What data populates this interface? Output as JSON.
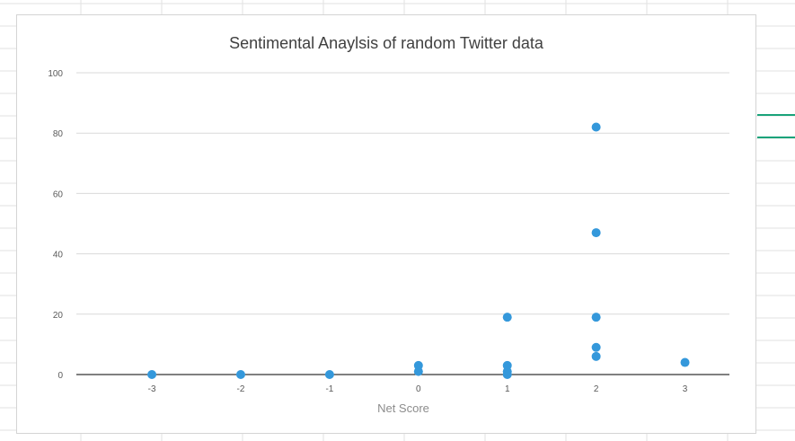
{
  "colors": {
    "sheet_gridline": "#e2e2e2",
    "chart_gridline": "#d9d9d9",
    "axis_line": "#000000",
    "marker": "#3498db",
    "side_line": "#1aa37a"
  },
  "chart_data": {
    "type": "scatter",
    "title": "Sentimental Anaylsis of random Twitter data",
    "xlabel": "Net Score",
    "ylabel": "",
    "xlim": [
      -3.85,
      3.5
    ],
    "ylim": [
      0,
      100
    ],
    "xticks": [
      "-3",
      "-2",
      "-1",
      "0",
      "1",
      "2",
      "3"
    ],
    "xtick_values": [
      -3,
      -2,
      -1,
      0,
      1,
      2,
      3
    ],
    "yticks": [
      "0",
      "20",
      "40",
      "60",
      "80",
      "100"
    ],
    "ytick_values": [
      0,
      20,
      40,
      60,
      80,
      100
    ],
    "grid": true,
    "legend": "none",
    "series": [
      {
        "points": [
          {
            "x": -3,
            "y": 0
          },
          {
            "x": -2,
            "y": 0
          },
          {
            "x": -1,
            "y": 0
          },
          {
            "x": 0,
            "y": 3
          },
          {
            "x": 0,
            "y": 1
          },
          {
            "x": 1,
            "y": 19
          },
          {
            "x": 1,
            "y": 3
          },
          {
            "x": 1,
            "y": 1
          },
          {
            "x": 1,
            "y": 0
          },
          {
            "x": 2,
            "y": 82
          },
          {
            "x": 2,
            "y": 47
          },
          {
            "x": 2,
            "y": 19
          },
          {
            "x": 2,
            "y": 9
          },
          {
            "x": 2,
            "y": 6
          },
          {
            "x": 3,
            "y": 4
          }
        ]
      }
    ]
  }
}
